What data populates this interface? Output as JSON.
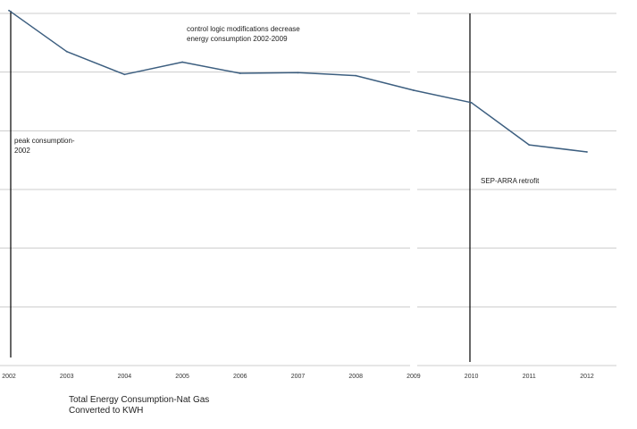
{
  "chart_data": {
    "type": "line",
    "title": "Total Energy Consumption-Nat Gas Converted to KWH",
    "caption_lines": [
      "Total Energy Consumption-Nat Gas",
      "Converted to KWH"
    ],
    "x": [
      "2002",
      "2003",
      "2004",
      "2005",
      "2006",
      "2007",
      "2008",
      "2009",
      "2010",
      "2011",
      "2012"
    ],
    "series": [
      {
        "name": "Total Energy Consumption",
        "values": [
          6.05,
          5.35,
          4.96,
          5.17,
          4.98,
          4.99,
          4.94,
          4.69,
          4.48,
          3.76,
          3.64
        ]
      }
    ],
    "ylim": [
      0,
      6.0
    ],
    "y_gridlines": [
      0,
      1,
      2,
      3,
      4,
      5,
      6
    ],
    "xlabel": "",
    "ylabel": "",
    "annotations": [
      {
        "id": "control",
        "lines": [
          "control logic modifications decrease",
          "energy consumption 2002-2009"
        ]
      },
      {
        "id": "peak",
        "lines": [
          "peak consumption-",
          "2002"
        ]
      },
      {
        "id": "retrofit",
        "lines": [
          "SEP-ARRA retrofit"
        ]
      }
    ],
    "colors": {
      "line": "#3d5f80",
      "grid": "#cccccc",
      "marker": "#000000"
    }
  }
}
